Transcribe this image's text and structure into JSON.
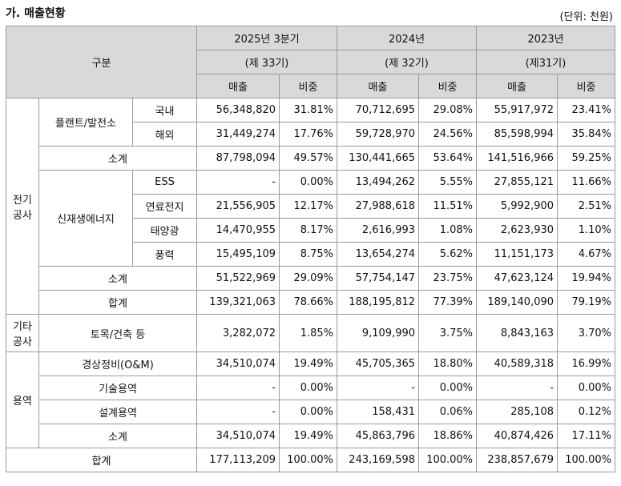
{
  "header": {
    "title": "가. 매출현황",
    "unit": "(단위: 천원)"
  },
  "table": {
    "col_header": "구분",
    "periods": [
      {
        "year": "2025년 3분기",
        "term": "(제 33기)"
      },
      {
        "year": "2024년",
        "term": "(제 32기)"
      },
      {
        "year": "2023년",
        "term": "(제31기)"
      }
    ],
    "metrics": [
      "매출",
      "비중"
    ],
    "sections": [
      {
        "label": "전기\n공사",
        "subgroups": [
          {
            "label": "플랜트/발전소",
            "items": [
              {
                "label": "국내",
                "values": [
                  "56,348,820",
                  "31.81%",
                  "70,712,695",
                  "29.08%",
                  "55,917,972",
                  "23.41%"
                ]
              },
              {
                "label": "해외",
                "values": [
                  "31,449,274",
                  "17.76%",
                  "59,728,970",
                  "24.56%",
                  "85,598,994",
                  "35.84%"
                ]
              }
            ]
          },
          {
            "label": "소계",
            "values": [
              "87,798,094",
              "49.57%",
              "130,441,665",
              "53.64%",
              "141,516,966",
              "59.25%"
            ]
          },
          {
            "label": "신재생에너지",
            "items": [
              {
                "label": "ESS",
                "values": [
                  "-",
                  "0.00%",
                  "13,494,262",
                  "5.55%",
                  "27,855,121",
                  "11.66%"
                ]
              },
              {
                "label": "연료전지",
                "values": [
                  "21,556,905",
                  "12.17%",
                  "27,988,618",
                  "11.51%",
                  "5,992,900",
                  "2.51%"
                ]
              },
              {
                "label": "태양광",
                "values": [
                  "14,470,955",
                  "8.17%",
                  "2,616,993",
                  "1.08%",
                  "2,623,930",
                  "1.10%"
                ]
              },
              {
                "label": "풍력",
                "values": [
                  "15,495,109",
                  "8.75%",
                  "13,654,274",
                  "5.62%",
                  "11,151,173",
                  "4.67%"
                ]
              }
            ]
          },
          {
            "label": "소계",
            "values": [
              "51,522,969",
              "29.09%",
              "57,754,147",
              "23.75%",
              "47,623,124",
              "19.94%"
            ]
          },
          {
            "label": "합계",
            "values": [
              "139,321,063",
              "78.66%",
              "188,195,812",
              "77.39%",
              "189,140,090",
              "79.19%"
            ]
          }
        ]
      },
      {
        "label": "기타\n공사",
        "subgroups": [
          {
            "label": "토목/건축 등",
            "values": [
              "3,282,072",
              "1.85%",
              "9,109,990",
              "3.75%",
              "8,843,163",
              "3.70%"
            ]
          }
        ]
      },
      {
        "label": "용역",
        "subgroups": [
          {
            "label": "경상정비(O&M)",
            "values": [
              "34,510,074",
              "19.49%",
              "45,705,365",
              "18.80%",
              "40,589,318",
              "16.99%"
            ]
          },
          {
            "label": "기술용역",
            "values": [
              "-",
              "0.00%",
              "-",
              "0.00%",
              "-",
              "0.00%"
            ]
          },
          {
            "label": "설계용역",
            "values": [
              "-",
              "0.00%",
              "158,431",
              "0.06%",
              "285,108",
              "0.12%"
            ]
          },
          {
            "label": "소계",
            "values": [
              "34,510,074",
              "19.49%",
              "45,863,796",
              "18.86%",
              "40,874,426",
              "17.11%"
            ]
          }
        ]
      }
    ],
    "total": {
      "label": "합계",
      "values": [
        "177,113,209",
        "100.00%",
        "243,169,598",
        "100.00%",
        "238,857,679",
        "100.00%"
      ]
    }
  }
}
